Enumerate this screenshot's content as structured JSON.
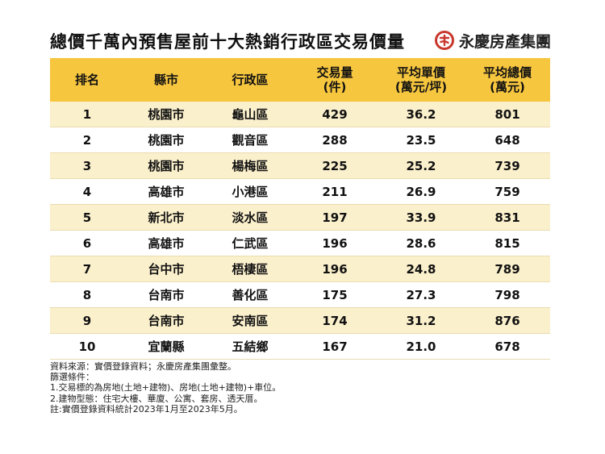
{
  "title": "總價千萬內預售屋前十大熱銷行政區交易價量",
  "brand": {
    "name": "永慶房產集團",
    "logo_color": "#c8372d"
  },
  "colors": {
    "header": "#f7c63f",
    "row_alt": "#fbf0cc"
  },
  "table": {
    "headers": [
      {
        "line1": "排名",
        "line2": ""
      },
      {
        "line1": "縣市",
        "line2": ""
      },
      {
        "line1": "行政區",
        "line2": ""
      },
      {
        "line1": "交易量",
        "line2": "(件)"
      },
      {
        "line1": "平均單價",
        "line2": "(萬元/坪)"
      },
      {
        "line1": "平均總價",
        "line2": "(萬元)"
      }
    ],
    "rows": [
      [
        "1",
        "桃園市",
        "龜山區",
        "429",
        "36.2",
        "801"
      ],
      [
        "2",
        "桃園市",
        "觀音區",
        "288",
        "23.5",
        "648"
      ],
      [
        "3",
        "桃園市",
        "楊梅區",
        "225",
        "25.2",
        "739"
      ],
      [
        "4",
        "高雄市",
        "小港區",
        "211",
        "26.9",
        "759"
      ],
      [
        "5",
        "新北市",
        "淡水區",
        "197",
        "33.9",
        "831"
      ],
      [
        "6",
        "高雄市",
        "仁武區",
        "196",
        "28.6",
        "815"
      ],
      [
        "7",
        "台中市",
        "梧棲區",
        "196",
        "24.8",
        "789"
      ],
      [
        "8",
        "台南市",
        "善化區",
        "175",
        "27.3",
        "798"
      ],
      [
        "9",
        "台南市",
        "安南區",
        "174",
        "31.2",
        "876"
      ],
      [
        "10",
        "宜蘭縣",
        "五結鄉",
        "167",
        "21.0",
        "678"
      ]
    ]
  },
  "notes": [
    "資料來源：實價登錄資料；永慶房產集團彙整。",
    "篩選條件：",
    "1.交易標的為房地(土地+建物)、房地(土地+建物)+車位。",
    "2.建物型態：住宅大樓、華廈、公寓、套房、透天厝。",
    "註:實價登錄資料統計2023年1月至2023年5月。"
  ]
}
